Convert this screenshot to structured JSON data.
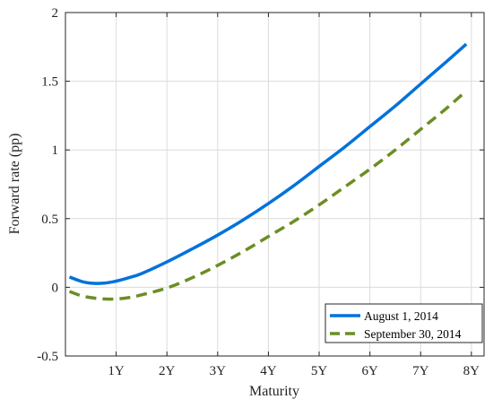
{
  "chart_data": {
    "type": "line",
    "xlabel": "Maturity",
    "ylabel": "Forward rate (pp)",
    "xlim": [
      0,
      8.25
    ],
    "ylim": [
      -0.5,
      2
    ],
    "x_ticks": [
      {
        "value": 1,
        "label": "1Y"
      },
      {
        "value": 2,
        "label": "2Y"
      },
      {
        "value": 3,
        "label": "3Y"
      },
      {
        "value": 4,
        "label": "4Y"
      },
      {
        "value": 5,
        "label": "5Y"
      },
      {
        "value": 6,
        "label": "6Y"
      },
      {
        "value": 7,
        "label": "7Y"
      },
      {
        "value": 8,
        "label": "8Y"
      }
    ],
    "y_ticks": [
      {
        "value": -0.5,
        "label": "-0.5"
      },
      {
        "value": 0,
        "label": "0"
      },
      {
        "value": 0.5,
        "label": "0.5"
      },
      {
        "value": 1,
        "label": "1"
      },
      {
        "value": 1.5,
        "label": "1.5"
      },
      {
        "value": 2,
        "label": "2"
      }
    ],
    "grid": true,
    "legend_position": "bottom-right",
    "series": [
      {
        "name": "August 1, 2014",
        "color": "#0072DB",
        "style": "solid",
        "x": [
          0.08,
          0.3,
          0.5,
          0.75,
          1.0,
          1.25,
          1.5,
          2.0,
          2.5,
          3.0,
          3.5,
          4.0,
          4.5,
          5.0,
          5.5,
          6.0,
          6.5,
          7.0,
          7.5,
          7.9
        ],
        "y": [
          0.075,
          0.045,
          0.03,
          0.03,
          0.045,
          0.07,
          0.1,
          0.185,
          0.28,
          0.38,
          0.49,
          0.61,
          0.74,
          0.88,
          1.02,
          1.17,
          1.32,
          1.48,
          1.64,
          1.77
        ]
      },
      {
        "name": "September 30, 2014",
        "color": "#6B8E23",
        "style": "dashed",
        "x": [
          0.08,
          0.3,
          0.5,
          0.75,
          1.0,
          1.25,
          1.5,
          2.0,
          2.5,
          3.0,
          3.5,
          4.0,
          4.5,
          5.0,
          5.5,
          6.0,
          6.5,
          7.0,
          7.5,
          7.9
        ],
        "y": [
          -0.03,
          -0.06,
          -0.075,
          -0.085,
          -0.085,
          -0.075,
          -0.055,
          -0.005,
          0.07,
          0.16,
          0.26,
          0.37,
          0.48,
          0.6,
          0.73,
          0.86,
          1.0,
          1.15,
          1.3,
          1.43
        ]
      }
    ]
  }
}
